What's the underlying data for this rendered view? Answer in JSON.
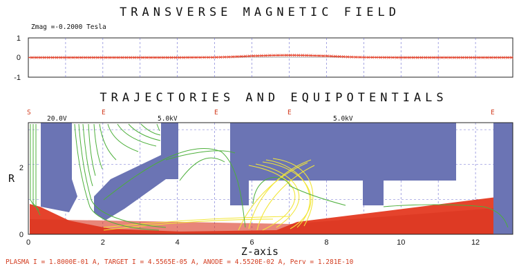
{
  "titles": {
    "top": "TRANSVERSE MAGNETIC FIELD",
    "bottom": "TRAJECTORIES AND EQUIPOTENTIALS"
  },
  "zmag_label": "Zmag =-0.2000 Tesla",
  "footer": "PLASMA I = 1.8000E-01 A, TARGET I = 4.5565E-05 A, ANODE =  4.5520E-02 A, Perv = 1.281E-10",
  "colors": {
    "electrode": "#6b74b4",
    "beam": "#e5432c",
    "equipotential": "#4caf3a",
    "secondary": "#f2e63a",
    "grid": "#6a6ad0",
    "marker": "#d23b1e"
  },
  "chart_data": [
    {
      "type": "line",
      "title": "TRANSVERSE MAGNETIC FIELD",
      "annotation": "Zmag =-0.2000 Tesla",
      "xlim": [
        0,
        13
      ],
      "ylim": [
        -1,
        1
      ],
      "yticks": [
        "1",
        "0",
        "-1"
      ],
      "grid": true,
      "series": [
        {
          "x": [
            0,
            1,
            2,
            3,
            4,
            5,
            5.5,
            6,
            6.5,
            7,
            7.5,
            8,
            8.5,
            9,
            10,
            11,
            12,
            13
          ],
          "values": [
            0,
            0,
            0,
            0,
            0,
            0.01,
            0.04,
            0.08,
            0.11,
            0.12,
            0.11,
            0.08,
            0.04,
            0.01,
            0,
            0,
            0,
            0
          ]
        }
      ]
    },
    {
      "type": "line",
      "title": "TRAJECTORIES AND EQUIPOTENTIALS",
      "xlabel": "Z-axis",
      "ylabel": "R",
      "xlim": [
        0,
        13
      ],
      "ylim": [
        0,
        3.2
      ],
      "xticks": [
        "0",
        "2",
        "4",
        "6",
        "8",
        "10",
        "12"
      ],
      "yticks": [
        "0",
        "2"
      ],
      "grid": true,
      "voltage_labels": [
        "20.0V",
        "5.0kV",
        "5.0kV"
      ],
      "top_markers": [
        "S",
        "E",
        "E",
        "E",
        "E"
      ]
    }
  ]
}
